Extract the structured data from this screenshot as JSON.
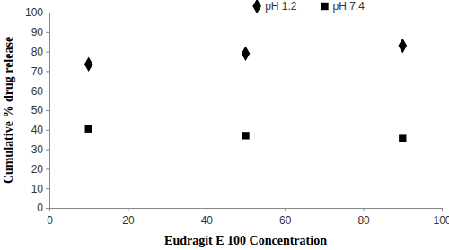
{
  "chart_data": {
    "type": "scatter",
    "x_label": "Eudragit E 100 Concentration",
    "y_label": "Cumulative % drug release",
    "x": [
      10,
      50,
      90
    ],
    "series": [
      {
        "name": "pH 1.2",
        "color": "#000000",
        "marker": "diamond",
        "values": [
          73.5,
          79,
          83
        ]
      },
      {
        "name": "pH 7.4",
        "color": "#000000",
        "marker": "square",
        "values": [
          40.5,
          37,
          35.5
        ]
      }
    ],
    "xlim": [
      0,
      100
    ],
    "xticks": [
      0,
      20,
      40,
      60,
      80,
      100
    ],
    "ylim": [
      0,
      100
    ],
    "yticks": [
      0,
      10,
      20,
      30,
      40,
      50,
      60,
      70,
      80,
      90,
      100
    ],
    "legend": "top",
    "grid": false
  }
}
